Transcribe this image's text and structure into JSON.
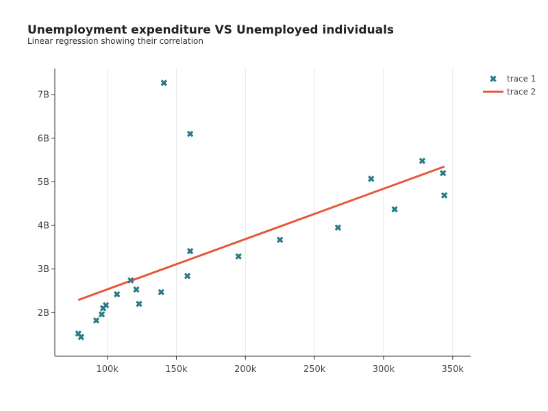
{
  "chart_data": {
    "type": "scatter",
    "title": "Unemployment expenditure VS Unemployed individuals",
    "subtitle": "Linear regression showing their correlation",
    "xlabel": "",
    "ylabel": "",
    "xlim": [
      62000,
      363000
    ],
    "ylim": [
      1000000000,
      7600000000
    ],
    "x_ticks": [
      100000,
      150000,
      200000,
      250000,
      300000,
      350000
    ],
    "x_tick_labels": [
      "100k",
      "150k",
      "200k",
      "250k",
      "300k",
      "350k"
    ],
    "y_ticks": [
      2000000000,
      3000000000,
      4000000000,
      5000000000,
      6000000000,
      7000000000
    ],
    "y_tick_labels": [
      "2B",
      "3B",
      "4B",
      "5B",
      "6B",
      "7B"
    ],
    "grid": "vertical",
    "legend_position": "top-right",
    "series": [
      {
        "name": "trace 1",
        "mode": "markers",
        "marker": "x",
        "color": "#2a7b86",
        "points": [
          {
            "x": 79000,
            "y": 1520000000
          },
          {
            "x": 81000,
            "y": 1440000000
          },
          {
            "x": 92000,
            "y": 1820000000
          },
          {
            "x": 96000,
            "y": 1960000000
          },
          {
            "x": 97000,
            "y": 2100000000
          },
          {
            "x": 99000,
            "y": 2170000000
          },
          {
            "x": 107000,
            "y": 2420000000
          },
          {
            "x": 117000,
            "y": 2740000000
          },
          {
            "x": 121000,
            "y": 2530000000
          },
          {
            "x": 123000,
            "y": 2200000000
          },
          {
            "x": 139000,
            "y": 2470000000
          },
          {
            "x": 141000,
            "y": 7270000000
          },
          {
            "x": 158000,
            "y": 2840000000
          },
          {
            "x": 160000,
            "y": 3410000000
          },
          {
            "x": 160000,
            "y": 6100000000
          },
          {
            "x": 195000,
            "y": 3290000000
          },
          {
            "x": 225000,
            "y": 3670000000
          },
          {
            "x": 267000,
            "y": 3950000000
          },
          {
            "x": 291000,
            "y": 5070000000
          },
          {
            "x": 308000,
            "y": 4370000000
          },
          {
            "x": 328000,
            "y": 5480000000
          },
          {
            "x": 343000,
            "y": 5200000000
          },
          {
            "x": 344000,
            "y": 4690000000
          }
        ]
      },
      {
        "name": "trace 2",
        "mode": "lines",
        "color": "#e8573a",
        "points": [
          {
            "x": 79000,
            "y": 2290000000
          },
          {
            "x": 344000,
            "y": 5350000000
          }
        ]
      }
    ]
  }
}
